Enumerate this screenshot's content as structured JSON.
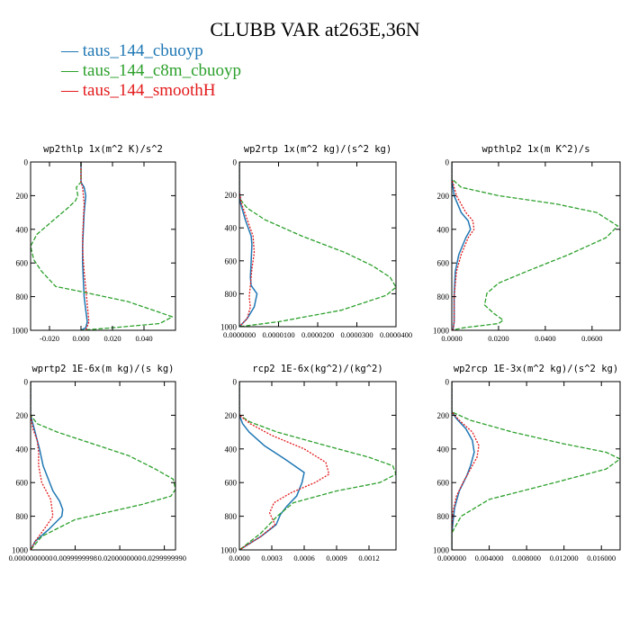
{
  "title": "CLUBB VAR at263E,36N",
  "legend": [
    {
      "label": "taus_144_cbuoyp",
      "color": "#1f77b4"
    },
    {
      "label": "taus_144_c8m_cbuoyp",
      "color": "#2ca02c"
    },
    {
      "label": "taus_144_smoothH",
      "color": "#e31a1c"
    }
  ],
  "chart_data": [
    {
      "type": "line",
      "title": "wp2thlp  1x(m^2 K)/s^2",
      "xlim": [
        -0.032,
        0.06
      ],
      "ylim": [
        1000,
        0
      ],
      "xticks": [
        -0.02,
        0.0,
        0.02,
        0.04
      ],
      "xtick_labels": [
        "-0.020",
        "0.000",
        "0.020",
        "0.040"
      ],
      "yticks": [
        0,
        200,
        400,
        600,
        800,
        1000
      ],
      "series": [
        {
          "name": "taus_144_cbuoyp",
          "color": "#1f77b4",
          "dash": "solid",
          "x": [
            0.0,
            0.0,
            0.002,
            0.003,
            0.0025,
            0.002,
            0.0015,
            0.001,
            0.001,
            0.0015,
            0.002,
            0.003,
            0.004,
            0.003,
            0.0
          ],
          "y": [
            0,
            120,
            150,
            200,
            250,
            300,
            400,
            500,
            600,
            700,
            800,
            880,
            950,
            985,
            1000
          ]
        },
        {
          "name": "taus_144_c8m_cbuoyp",
          "color": "#2ca02c",
          "dash": "dashed",
          "x": [
            0.0,
            0.0,
            -0.003,
            -0.002,
            -0.0035,
            -0.008,
            -0.018,
            -0.028,
            -0.032,
            -0.03,
            -0.025,
            -0.02,
            -0.016,
            0.0,
            0.03,
            0.058,
            0.05,
            0.02,
            0.0
          ],
          "y": [
            0,
            120,
            150,
            200,
            230,
            270,
            350,
            430,
            500,
            580,
            650,
            700,
            740,
            770,
            830,
            920,
            960,
            985,
            1000
          ]
        },
        {
          "name": "taus_144_smoothH",
          "color": "#e31a1c",
          "dash": "dotted",
          "x": [
            0.0,
            0.0,
            0.001,
            0.002,
            0.0015,
            0.001,
            0.0012,
            0.002,
            0.003,
            0.004,
            0.005,
            0.003
          ],
          "y": [
            0,
            120,
            150,
            250,
            350,
            450,
            550,
            650,
            750,
            850,
            950,
            1000
          ]
        }
      ]
    },
    {
      "type": "line",
      "title": "wp2rtp  1x(m^2 kg)/(s^2 kg)",
      "xlim": [
        0,
        4e-05
      ],
      "ylim": [
        1000,
        0
      ],
      "xticks": [
        0,
        1e-05,
        2e-05,
        3e-05,
        4e-05
      ],
      "xtick_labels": [
        "0.0000000",
        "0.0000100",
        "0.0000200",
        "0.0000300",
        "0.0000400"
      ],
      "yticks": [
        0,
        200,
        400,
        600,
        800,
        1000
      ],
      "series": [
        {
          "name": "taus_144_cbuoyp",
          "color": "#1f77b4",
          "dash": "solid",
          "x": [
            0.0,
            0.0,
            3e-07,
            1.5e-06,
            3e-06,
            3.2e-06,
            3e-06,
            2.8e-06,
            3e-06,
            4.5e-06,
            3.8e-06,
            2e-06,
            0.0
          ],
          "y": [
            0,
            180,
            250,
            350,
            450,
            500,
            600,
            700,
            750,
            800,
            880,
            950,
            1000
          ]
        },
        {
          "name": "taus_144_c8m_cbuoyp",
          "color": "#2ca02c",
          "dash": "dashed",
          "x": [
            0.0,
            0.0,
            2e-06,
            6.5e-06,
            1.6e-05,
            2.7e-05,
            3.4e-05,
            3.85e-05,
            4e-05,
            3.75e-05,
            2.6e-05,
            1e-05,
            0.0
          ],
          "y": [
            0,
            220,
            280,
            350,
            450,
            550,
            630,
            700,
            760,
            810,
            900,
            970,
            1000
          ]
        },
        {
          "name": "taus_144_smoothH",
          "color": "#e31a1c",
          "dash": "dotted",
          "x": [
            0.0,
            0.0,
            5e-07,
            2e-06,
            3.5e-06,
            3.8e-06,
            3.2e-06,
            2.8e-06,
            2.5e-06,
            2.8e-06,
            2e-06,
            0.0
          ],
          "y": [
            0,
            180,
            250,
            350,
            450,
            550,
            650,
            750,
            820,
            880,
            950,
            1000
          ]
        }
      ]
    },
    {
      "type": "line",
      "title": "wpthlp2  1x(m K^2)/s",
      "xlim": [
        0,
        0.072
      ],
      "ylim": [
        1000,
        0
      ],
      "xticks": [
        0,
        0.02,
        0.04,
        0.06
      ],
      "xtick_labels": [
        "0.0000",
        "0.0200",
        "0.0400",
        "0.0600"
      ],
      "yticks": [
        0,
        200,
        400,
        600,
        800,
        1000
      ],
      "series": [
        {
          "name": "taus_144_cbuoyp",
          "color": "#1f77b4",
          "dash": "solid",
          "x": [
            0.0,
            0.0,
            0.001,
            0.004,
            0.007,
            0.008,
            0.006,
            0.003,
            0.0015,
            0.001,
            0.001,
            0.0005
          ],
          "y": [
            0,
            100,
            200,
            300,
            350,
            400,
            450,
            550,
            650,
            800,
            950,
            1000
          ]
        },
        {
          "name": "taus_144_c8m_cbuoyp",
          "color": "#2ca02c",
          "dash": "dashed",
          "x": [
            0.0,
            0.0,
            0.004,
            0.02,
            0.045,
            0.062,
            0.071,
            0.066,
            0.05,
            0.032,
            0.02,
            0.015,
            0.014,
            0.018,
            0.022,
            0.02,
            0.005,
            0.0
          ],
          "y": [
            0,
            100,
            150,
            200,
            250,
            300,
            380,
            450,
            550,
            650,
            720,
            780,
            850,
            900,
            940,
            960,
            985,
            1000
          ]
        },
        {
          "name": "taus_144_smoothH",
          "color": "#e31a1c",
          "dash": "dotted",
          "x": [
            0.0,
            0.0,
            0.002,
            0.006,
            0.009,
            0.0095,
            0.007,
            0.004,
            0.002,
            0.001,
            0.001,
            0.0005
          ],
          "y": [
            0,
            100,
            200,
            300,
            350,
            400,
            450,
            550,
            650,
            800,
            950,
            1000
          ]
        }
      ]
    },
    {
      "type": "line",
      "title": "wprtp2  1E-6x(m kg)/(s kg)",
      "xlim": [
        0,
        3.25e-05
      ],
      "ylim": [
        1000,
        0
      ],
      "xticks": [
        0,
        1e-05,
        2e-05,
        3e-05
      ],
      "xtick_labels": [
        "0.0000000000",
        "0.0099999998",
        "0.0200000000",
        "0.0299999990"
      ],
      "yticks": [
        0,
        200,
        400,
        600,
        800,
        1000
      ],
      "series": [
        {
          "name": "taus_144_cbuoyp",
          "color": "#1f77b4",
          "dash": "solid",
          "x": [
            0.0,
            0.0,
            5e-07,
            1e-06,
            1.5e-06,
            2e-06,
            2.8e-06,
            5e-06,
            6.5e-06,
            7.2e-06,
            7e-06,
            4e-06,
            1e-06,
            0.0
          ],
          "y": [
            0,
            200,
            250,
            300,
            350,
            400,
            500,
            650,
            710,
            760,
            800,
            880,
            950,
            1000
          ]
        },
        {
          "name": "taus_144_c8m_cbuoyp",
          "color": "#2ca02c",
          "dash": "dashed",
          "x": [
            0.0,
            0.0,
            1.5e-06,
            6e-06,
            1.4e-05,
            2.2e-05,
            2.8e-05,
            3.2e-05,
            3.25e-05,
            3.15e-05,
            2.5e-05,
            1e-05,
            2.5e-06,
            0.0
          ],
          "y": [
            0,
            200,
            250,
            300,
            370,
            440,
            520,
            580,
            640,
            680,
            730,
            820,
            920,
            1000
          ]
        },
        {
          "name": "taus_144_smoothH",
          "color": "#e31a1c",
          "dash": "dotted",
          "x": [
            0.0,
            0.0,
            5e-07,
            1.5e-06,
            1.8e-06,
            1.8e-06,
            2.5e-06,
            4.5e-06,
            5e-06,
            3.5e-06,
            1e-06,
            0.0
          ],
          "y": [
            0,
            200,
            280,
            350,
            420,
            500,
            600,
            700,
            800,
            860,
            950,
            1000
          ]
        }
      ]
    },
    {
      "type": "line",
      "title": "rcp2  1E-6x(kg^2)/(kg^2)",
      "xlim": [
        0,
        0.00145
      ],
      "ylim": [
        1000,
        0
      ],
      "xticks": [
        0,
        0.0003,
        0.0006,
        0.0009,
        0.0012
      ],
      "xtick_labels": [
        "0.0000",
        "0.0003",
        "0.0006",
        "0.0009",
        "0.0012"
      ],
      "yticks": [
        0,
        200,
        400,
        600,
        800,
        1000
      ],
      "series": [
        {
          "name": "taus_144_cbuoyp",
          "color": "#1f77b4",
          "dash": "solid",
          "x": [
            0.0,
            0.0,
            3e-05,
            9e-05,
            0.00023,
            0.00042,
            0.0006,
            0.00058,
            0.00053,
            0.00044,
            0.00038,
            0.00034,
            0.0002,
            0.0
          ],
          "y": [
            0,
            200,
            250,
            300,
            380,
            460,
            540,
            600,
            680,
            740,
            790,
            850,
            920,
            1000
          ]
        },
        {
          "name": "taus_144_c8m_cbuoyp",
          "color": "#2ca02c",
          "dash": "dashed",
          "x": [
            0.0,
            0.0,
            0.0001,
            0.00035,
            0.0008,
            0.0012,
            0.00142,
            0.00145,
            0.0013,
            0.0009,
            0.0005,
            0.00035,
            0.0002,
            0.0
          ],
          "y": [
            0,
            200,
            240,
            300,
            380,
            450,
            500,
            550,
            600,
            650,
            720,
            800,
            900,
            1000
          ]
        },
        {
          "name": "taus_144_smoothH",
          "color": "#e31a1c",
          "dash": "dotted",
          "x": [
            0.0,
            0.0,
            0.0001,
            0.0003,
            0.0006,
            0.0008,
            0.00083,
            0.0007,
            0.00048,
            0.00032,
            0.00028,
            0.00033,
            0.0002,
            0.0
          ],
          "y": [
            0,
            200,
            250,
            320,
            400,
            480,
            550,
            600,
            660,
            720,
            780,
            850,
            920,
            1000
          ]
        }
      ]
    },
    {
      "type": "line",
      "title": "wp2rcp  1E-3x(m^2 kg)/(s^2 kg)",
      "xlim": [
        0,
        0.018
      ],
      "ylim": [
        1000,
        0
      ],
      "xticks": [
        0,
        0.004,
        0.008,
        0.012,
        0.016
      ],
      "xtick_labels": [
        "0.000000",
        "0.004000",
        "0.008000",
        "0.012000",
        "0.016000"
      ],
      "yticks": [
        0,
        200,
        400,
        600,
        800,
        1000
      ],
      "series": [
        {
          "name": "taus_144_cbuoyp",
          "color": "#1f77b4",
          "dash": "solid",
          "x": [
            0.0,
            0.0,
            0.0005,
            0.0015,
            0.0022,
            0.0024,
            0.002,
            0.0016,
            0.0008,
            0.0003,
            0.0,
            0.0
          ],
          "y": [
            0,
            180,
            220,
            280,
            350,
            420,
            500,
            560,
            650,
            750,
            900,
            1000
          ]
        },
        {
          "name": "taus_144_c8m_cbuoyp",
          "color": "#2ca02c",
          "dash": "dashed",
          "x": [
            0.0,
            0.0,
            0.002,
            0.0065,
            0.012,
            0.0165,
            0.018,
            0.0165,
            0.011,
            0.004,
            0.001,
            0.0,
            0.0
          ],
          "y": [
            0,
            180,
            230,
            300,
            370,
            420,
            460,
            520,
            600,
            700,
            800,
            900,
            1000
          ]
        },
        {
          "name": "taus_144_smoothH",
          "color": "#e31a1c",
          "dash": "dotted",
          "x": [
            0.0,
            0.0,
            0.0008,
            0.0022,
            0.0029,
            0.0027,
            0.002,
            0.0012,
            0.0005,
            0.0001,
            0.0,
            0.0
          ],
          "y": [
            0,
            180,
            230,
            300,
            380,
            450,
            520,
            600,
            680,
            780,
            900,
            1000
          ]
        }
      ]
    }
  ]
}
